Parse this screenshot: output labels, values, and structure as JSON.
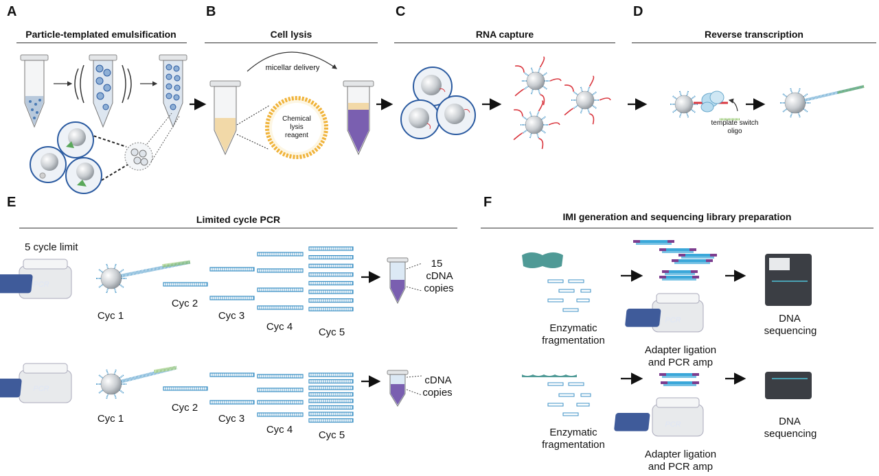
{
  "panels": {
    "a": {
      "letter": "A",
      "title": "Particle-templated emulsification"
    },
    "b": {
      "letter": "B",
      "title": "Cell lysis",
      "arrow_label": "micellar delivery",
      "reagent_label": "Chemical lysis reagent"
    },
    "c": {
      "letter": "C",
      "title": "RNA capture"
    },
    "d": {
      "letter": "D",
      "title": "Reverse transcription",
      "oligo_label": "template switch oligo"
    },
    "e": {
      "letter": "E",
      "title": "Limited cycle PCR",
      "cycle_limit": "5 cycle limit",
      "pcr_text": "PCR",
      "top_cycles": [
        "Cyc 1",
        "Cyc 2",
        "Cyc 3",
        "Cyc 4",
        "Cyc 5"
      ],
      "top_result": [
        "15",
        "cDNA",
        "copies"
      ],
      "bottom_cycles": [
        "Cyc 1",
        "Cyc 2",
        "Cyc 3",
        "Cyc 4",
        "Cyc 5"
      ],
      "bottom_result": [
        "cDNA",
        "copies"
      ]
    },
    "f": {
      "letter": "F",
      "title": "IMI generation and sequencing library preparation",
      "pcr_text": "PCR",
      "top": {
        "fragmentation": [
          "Enzymatic",
          "fragmentation"
        ],
        "ligation": [
          "Adapter ligation",
          "and PCR amp"
        ],
        "sequencing": [
          "DNA",
          "sequencing"
        ]
      },
      "bottom": {
        "fragmentation": [
          "Enzymatic",
          "fragmentation"
        ],
        "ligation": [
          "Adapter ligation",
          "and PCR amp"
        ],
        "sequencing": [
          "DNA",
          "sequencing"
        ]
      }
    }
  },
  "colors": {
    "bead": "#c9cdd1",
    "bead_ring": "#2a5aa0",
    "oligo": "#3a8fc4",
    "rna": "#d9363e",
    "cdna": "#7ab84a",
    "lysate": "#7a5fb0",
    "media": "#f2d9a8",
    "reagent": "#f0b33a",
    "instrument": "#e8eaec",
    "screen": "#3f5b9a",
    "enzyme": "#4f9a96",
    "adapter_a": "#3aa7d9",
    "adapter_b": "#7c3d8e",
    "sequencer": "#3b3e44"
  }
}
